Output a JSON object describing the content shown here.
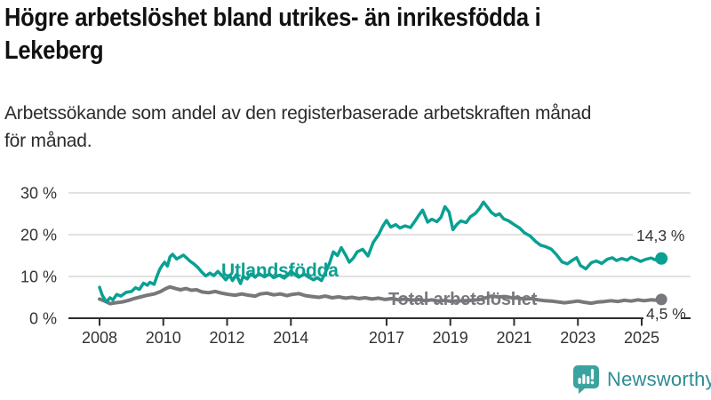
{
  "header": {
    "title_lines": [
      "Högre arbetslöshet bland utrikes- än inrikesfödda i",
      "Lekeberg"
    ],
    "subtitle_lines": [
      "Arbetssökande som andel av den registerbaserade arbetskraften månad",
      "för månad."
    ]
  },
  "branding": {
    "wordmark": "Newsworthy",
    "icon": "bar-chart-speech-bubble-icon",
    "icon_color": "#3ba39f",
    "wordmark_color": "#2e8d92"
  },
  "chart_data": {
    "type": "line",
    "title": "Högre arbetslöshet bland utrikes- än inrikesfödda i Lekeberg",
    "subtitle": "Arbetssökande som andel av den registerbaserade arbetskraften månad för månad.",
    "xlabel": "",
    "ylabel": "",
    "unit": "%",
    "ylim": [
      0,
      30
    ],
    "xlim": [
      2008,
      2025.7
    ],
    "grid": true,
    "legend_position": "inline-labels",
    "colors": {
      "grid": "#d9d9d9",
      "axis": "#2e2e2e",
      "tick_text": "#333333",
      "end_label_text": "#333333"
    },
    "y_ticks": [
      {
        "value": 0,
        "label": "0 %"
      },
      {
        "value": 10,
        "label": "10 %"
      },
      {
        "value": 20,
        "label": "20 %"
      },
      {
        "value": 30,
        "label": "30 %"
      }
    ],
    "x_ticks": [
      {
        "value": 2008,
        "label": "2008"
      },
      {
        "value": 2010,
        "label": "2010"
      },
      {
        "value": 2012,
        "label": "2012"
      },
      {
        "value": 2014,
        "label": "2014"
      },
      {
        "value": 2017,
        "label": "2017"
      },
      {
        "value": 2019,
        "label": "2019"
      },
      {
        "value": 2021,
        "label": "2021"
      },
      {
        "value": 2023,
        "label": "2023"
      },
      {
        "value": 2025,
        "label": "2025"
      }
    ],
    "series": [
      {
        "name": "Utlandsfödda",
        "color": "#0aa092",
        "end_value": 14.3,
        "end_label": "14,3 %",
        "points": [
          [
            2008.0,
            7.4
          ],
          [
            2008.08,
            5.6
          ],
          [
            2008.21,
            3.9
          ],
          [
            2008.33,
            4.9
          ],
          [
            2008.42,
            4.4
          ],
          [
            2008.54,
            5.7
          ],
          [
            2008.67,
            5.3
          ],
          [
            2008.83,
            6.2
          ],
          [
            2009.0,
            6.4
          ],
          [
            2009.13,
            7.3
          ],
          [
            2009.25,
            6.9
          ],
          [
            2009.38,
            8.4
          ],
          [
            2009.5,
            7.9
          ],
          [
            2009.58,
            8.6
          ],
          [
            2009.71,
            8.1
          ],
          [
            2009.79,
            9.8
          ],
          [
            2009.88,
            11.6
          ],
          [
            2009.96,
            12.6
          ],
          [
            2010.04,
            13.4
          ],
          [
            2010.13,
            12.5
          ],
          [
            2010.21,
            14.7
          ],
          [
            2010.29,
            15.3
          ],
          [
            2010.42,
            14.2
          ],
          [
            2010.54,
            14.7
          ],
          [
            2010.63,
            15.1
          ],
          [
            2010.75,
            14.3
          ],
          [
            2010.83,
            13.7
          ],
          [
            2010.96,
            13.0
          ],
          [
            2011.08,
            12.2
          ],
          [
            2011.21,
            11.0
          ],
          [
            2011.33,
            10.1
          ],
          [
            2011.46,
            10.8
          ],
          [
            2011.58,
            10.2
          ],
          [
            2011.71,
            11.2
          ],
          [
            2011.83,
            10.3
          ],
          [
            2011.96,
            9.2
          ],
          [
            2012.08,
            10.3
          ],
          [
            2012.17,
            9.0
          ],
          [
            2012.29,
            10.4
          ],
          [
            2012.42,
            8.3
          ],
          [
            2012.5,
            10.0
          ],
          [
            2012.63,
            9.4
          ],
          [
            2012.75,
            10.6
          ],
          [
            2012.88,
            9.8
          ],
          [
            2013.0,
            10.7
          ],
          [
            2013.17,
            9.9
          ],
          [
            2013.33,
            10.6
          ],
          [
            2013.46,
            9.7
          ],
          [
            2013.63,
            10.3
          ],
          [
            2013.79,
            9.6
          ],
          [
            2013.92,
            10.4
          ],
          [
            2014.0,
            11.3
          ],
          [
            2014.13,
            10.4
          ],
          [
            2014.25,
            9.8
          ],
          [
            2014.42,
            10.6
          ],
          [
            2014.54,
            9.9
          ],
          [
            2014.71,
            9.2
          ],
          [
            2014.83,
            9.7
          ],
          [
            2014.96,
            9.0
          ],
          [
            2015.08,
            10.9
          ],
          [
            2015.21,
            13.1
          ],
          [
            2015.33,
            15.9
          ],
          [
            2015.46,
            15.0
          ],
          [
            2015.58,
            16.9
          ],
          [
            2015.71,
            15.2
          ],
          [
            2015.83,
            13.4
          ],
          [
            2015.96,
            14.4
          ],
          [
            2016.08,
            15.9
          ],
          [
            2016.25,
            16.5
          ],
          [
            2016.42,
            14.9
          ],
          [
            2016.58,
            18.1
          ],
          [
            2016.75,
            20.0
          ],
          [
            2016.88,
            22.0
          ],
          [
            2017.0,
            23.4
          ],
          [
            2017.13,
            21.8
          ],
          [
            2017.29,
            22.4
          ],
          [
            2017.42,
            21.6
          ],
          [
            2017.58,
            22.1
          ],
          [
            2017.75,
            21.7
          ],
          [
            2017.88,
            23.1
          ],
          [
            2018.0,
            24.5
          ],
          [
            2018.13,
            25.9
          ],
          [
            2018.29,
            23.0
          ],
          [
            2018.42,
            23.7
          ],
          [
            2018.58,
            23.1
          ],
          [
            2018.71,
            24.2
          ],
          [
            2018.83,
            26.7
          ],
          [
            2018.96,
            25.4
          ],
          [
            2019.08,
            21.2
          ],
          [
            2019.21,
            22.5
          ],
          [
            2019.33,
            23.3
          ],
          [
            2019.5,
            22.9
          ],
          [
            2019.63,
            24.3
          ],
          [
            2019.79,
            25.1
          ],
          [
            2019.92,
            26.3
          ],
          [
            2020.04,
            27.8
          ],
          [
            2020.17,
            26.5
          ],
          [
            2020.29,
            25.3
          ],
          [
            2020.42,
            24.6
          ],
          [
            2020.54,
            25.0
          ],
          [
            2020.67,
            23.8
          ],
          [
            2020.83,
            23.3
          ],
          [
            2021.0,
            22.4
          ],
          [
            2021.17,
            21.6
          ],
          [
            2021.33,
            20.4
          ],
          [
            2021.5,
            19.7
          ],
          [
            2021.67,
            18.4
          ],
          [
            2021.83,
            17.5
          ],
          [
            2022.0,
            17.1
          ],
          [
            2022.17,
            16.5
          ],
          [
            2022.33,
            15.2
          ],
          [
            2022.5,
            13.5
          ],
          [
            2022.67,
            13.0
          ],
          [
            2022.83,
            13.9
          ],
          [
            2022.96,
            14.5
          ],
          [
            2023.08,
            12.6
          ],
          [
            2023.25,
            11.8
          ],
          [
            2023.42,
            13.3
          ],
          [
            2023.58,
            13.7
          ],
          [
            2023.75,
            13.1
          ],
          [
            2023.92,
            14.1
          ],
          [
            2024.08,
            14.5
          ],
          [
            2024.21,
            13.8
          ],
          [
            2024.38,
            14.3
          ],
          [
            2024.54,
            13.9
          ],
          [
            2024.67,
            14.6
          ],
          [
            2024.83,
            14.1
          ],
          [
            2024.96,
            13.6
          ],
          [
            2025.13,
            14.1
          ],
          [
            2025.29,
            14.4
          ],
          [
            2025.46,
            13.9
          ],
          [
            2025.62,
            14.3
          ]
        ]
      },
      {
        "name": "Total arbetslöshet",
        "color": "#77787b",
        "end_value": 4.5,
        "end_label": "4,5 %",
        "points": [
          [
            2008.0,
            4.6
          ],
          [
            2008.17,
            4.1
          ],
          [
            2008.33,
            3.5
          ],
          [
            2008.5,
            3.7
          ],
          [
            2008.71,
            3.9
          ],
          [
            2008.92,
            4.3
          ],
          [
            2009.08,
            4.7
          ],
          [
            2009.29,
            5.1
          ],
          [
            2009.5,
            5.5
          ],
          [
            2009.71,
            5.8
          ],
          [
            2009.92,
            6.4
          ],
          [
            2010.08,
            7.1
          ],
          [
            2010.21,
            7.5
          ],
          [
            2010.38,
            7.1
          ],
          [
            2010.54,
            6.8
          ],
          [
            2010.71,
            7.1
          ],
          [
            2010.88,
            6.7
          ],
          [
            2011.04,
            6.8
          ],
          [
            2011.21,
            6.3
          ],
          [
            2011.42,
            6.1
          ],
          [
            2011.63,
            6.4
          ],
          [
            2011.83,
            6.0
          ],
          [
            2012.04,
            5.7
          ],
          [
            2012.25,
            5.5
          ],
          [
            2012.46,
            5.8
          ],
          [
            2012.67,
            5.5
          ],
          [
            2012.88,
            5.3
          ],
          [
            2013.04,
            5.8
          ],
          [
            2013.25,
            6.0
          ],
          [
            2013.46,
            5.6
          ],
          [
            2013.67,
            5.8
          ],
          [
            2013.88,
            5.4
          ],
          [
            2014.04,
            5.7
          ],
          [
            2014.25,
            5.9
          ],
          [
            2014.46,
            5.4
          ],
          [
            2014.67,
            5.2
          ],
          [
            2014.88,
            5.0
          ],
          [
            2015.08,
            5.3
          ],
          [
            2015.29,
            4.9
          ],
          [
            2015.5,
            5.1
          ],
          [
            2015.71,
            4.8
          ],
          [
            2015.92,
            5.0
          ],
          [
            2016.13,
            4.7
          ],
          [
            2016.33,
            4.9
          ],
          [
            2016.54,
            4.6
          ],
          [
            2016.75,
            4.8
          ],
          [
            2016.96,
            4.5
          ],
          [
            2017.17,
            4.7
          ],
          [
            2017.38,
            4.4
          ],
          [
            2017.58,
            4.6
          ],
          [
            2017.79,
            4.3
          ],
          [
            2018.0,
            4.5
          ],
          [
            2018.21,
            4.2
          ],
          [
            2018.42,
            4.4
          ],
          [
            2018.63,
            4.1
          ],
          [
            2018.83,
            4.3
          ],
          [
            2019.04,
            4.0
          ],
          [
            2019.25,
            4.2
          ],
          [
            2019.46,
            4.1
          ],
          [
            2019.67,
            4.3
          ],
          [
            2019.88,
            4.4
          ],
          [
            2020.08,
            4.8
          ],
          [
            2020.29,
            5.3
          ],
          [
            2020.5,
            5.1
          ],
          [
            2020.71,
            5.2
          ],
          [
            2020.92,
            4.9
          ],
          [
            2021.13,
            4.8
          ],
          [
            2021.33,
            4.6
          ],
          [
            2021.54,
            4.7
          ],
          [
            2021.75,
            4.4
          ],
          [
            2021.96,
            4.2
          ],
          [
            2022.17,
            4.1
          ],
          [
            2022.38,
            3.9
          ],
          [
            2022.58,
            3.7
          ],
          [
            2022.79,
            3.9
          ],
          [
            2023.0,
            4.1
          ],
          [
            2023.21,
            3.8
          ],
          [
            2023.42,
            3.6
          ],
          [
            2023.63,
            3.9
          ],
          [
            2023.83,
            4.0
          ],
          [
            2024.04,
            4.2
          ],
          [
            2024.25,
            4.0
          ],
          [
            2024.46,
            4.3
          ],
          [
            2024.67,
            4.1
          ],
          [
            2024.88,
            4.4
          ],
          [
            2025.08,
            4.2
          ],
          [
            2025.29,
            4.4
          ],
          [
            2025.46,
            4.3
          ],
          [
            2025.62,
            4.5
          ]
        ]
      }
    ]
  }
}
